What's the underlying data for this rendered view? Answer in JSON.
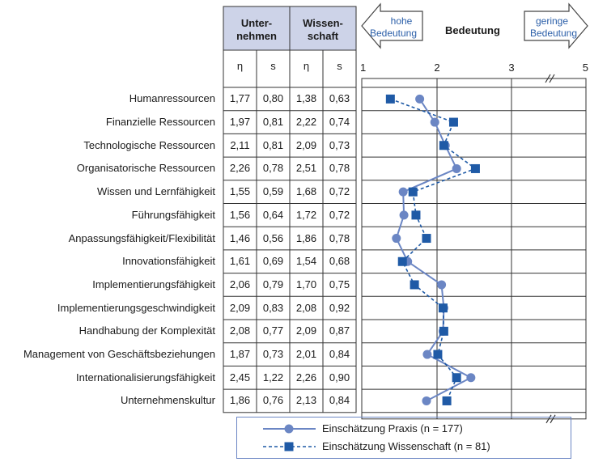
{
  "chart_data": {
    "type": "line",
    "title": "Bedeutung",
    "axis": {
      "xlim": [
        1,
        5
      ],
      "ticks": [
        "1",
        "2",
        "3",
        "5"
      ],
      "left_arrow": [
        "hohe",
        "Bedeutung"
      ],
      "right_arrow": [
        "geringe",
        "Bedeutung"
      ]
    },
    "table_headers": {
      "group1": [
        "Unter-",
        "nehmen"
      ],
      "group2": [
        "Wissen-",
        "schaft"
      ],
      "col_eta": "η",
      "col_s": "s"
    },
    "categories": [
      "Humanressourcen",
      "Finanzielle Ressourcen",
      "Technologische Ressourcen",
      "Organisatorische Ressourcen",
      "Wissen und Lernfähigkeit",
      "Führungsfähigkeit",
      "Anpassungsfähigkeit/Flexibilität",
      "Innovationsfähigkeit",
      "Implementierungsfähigkeit",
      "Implementierungsgeschwindigkeit",
      "Handhabung der Komplexität",
      "Management von Geschäftsbeziehungen",
      "Internationalisierungsfähigkeit",
      "Unternehmenskultur"
    ],
    "table_values": [
      [
        "1,77",
        "0,80",
        "1,38",
        "0,63"
      ],
      [
        "1,97",
        "0,81",
        "2,22",
        "0,74"
      ],
      [
        "2,11",
        "0,81",
        "2,09",
        "0,73"
      ],
      [
        "2,26",
        "0,78",
        "2,51",
        "0,78"
      ],
      [
        "1,55",
        "0,59",
        "1,68",
        "0,72"
      ],
      [
        "1,56",
        "0,64",
        "1,72",
        "0,72"
      ],
      [
        "1,46",
        "0,56",
        "1,86",
        "0,78"
      ],
      [
        "1,61",
        "0,69",
        "1,54",
        "0,68"
      ],
      [
        "2,06",
        "0,79",
        "1,70",
        "0,75"
      ],
      [
        "2,09",
        "0,83",
        "2,08",
        "0,92"
      ],
      [
        "2,08",
        "0,77",
        "2,09",
        "0,87"
      ],
      [
        "1,87",
        "0,73",
        "2,01",
        "0,84"
      ],
      [
        "2,45",
        "1,22",
        "2,26",
        "0,90"
      ],
      [
        "1,86",
        "0,76",
        "2,13",
        "0,84"
      ]
    ],
    "series": [
      {
        "name": "Einschätzung Praxis (n = 177)",
        "color": "#6b86c4",
        "marker": "circle",
        "line": "solid",
        "values": [
          1.77,
          1.97,
          2.11,
          2.26,
          1.55,
          1.56,
          1.46,
          1.61,
          2.06,
          2.09,
          2.08,
          1.87,
          2.45,
          1.86
        ]
      },
      {
        "name": "Einschätzung Wissenschaft (n = 81)",
        "color": "#1f5aa6",
        "marker": "square",
        "line": "dashed",
        "values": [
          1.38,
          2.22,
          2.09,
          2.51,
          1.68,
          1.72,
          1.86,
          1.54,
          1.7,
          2.08,
          2.09,
          2.01,
          2.26,
          2.13
        ]
      }
    ],
    "legend_position": "bottom"
  }
}
